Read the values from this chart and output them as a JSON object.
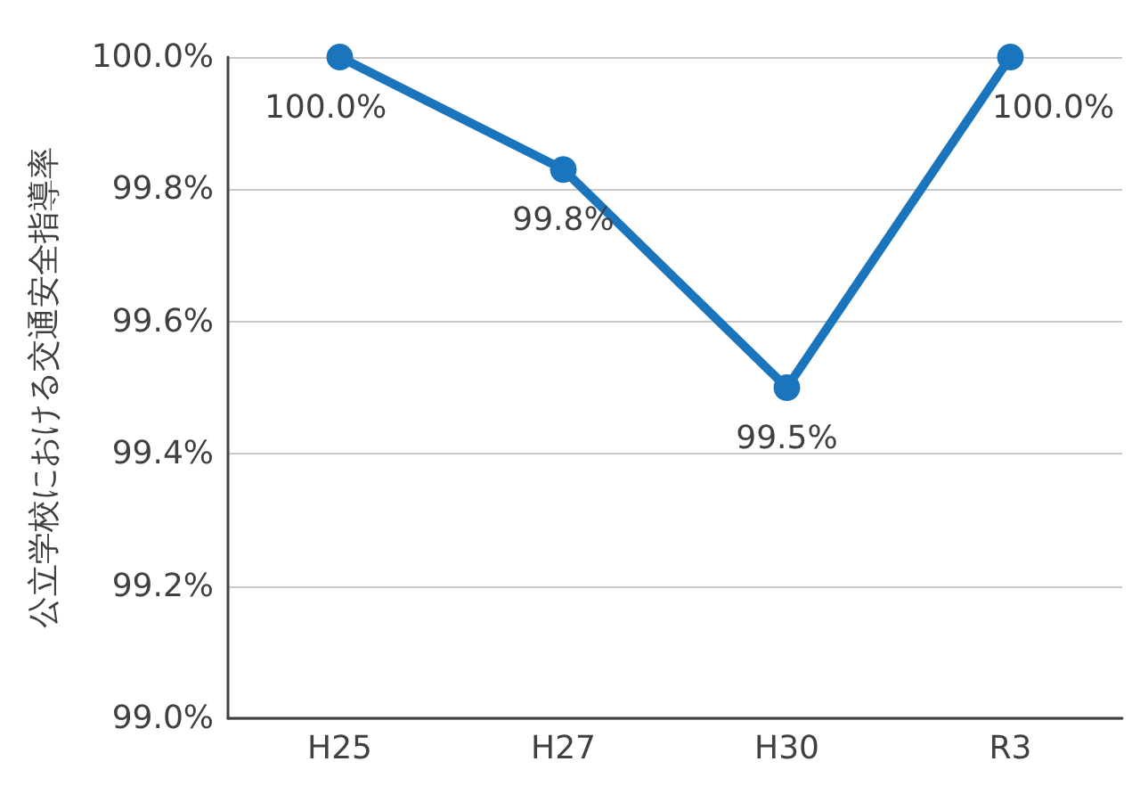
{
  "chart_data": {
    "type": "line",
    "ylabel": "公立学校における交通安全指導率",
    "categories": [
      "H25",
      "H27",
      "H30",
      "R3"
    ],
    "series": [
      {
        "color": "#1a75bc",
        "values": [
          100,
          99.83,
          99.5,
          100
        ],
        "value_labels": [
          "100.0%",
          "99.8%",
          "99.5%",
          "100.0%"
        ]
      }
    ],
    "ylim": [
      99,
      100
    ],
    "yticks": [
      {
        "value": 99,
        "label": "99.0%"
      },
      {
        "value": 99.2,
        "label": "99.2%"
      },
      {
        "value": 99.4,
        "label": "99.4%"
      },
      {
        "value": 99.6,
        "label": "99.6%"
      },
      {
        "value": 99.8,
        "label": "99.8%"
      },
      {
        "value": 100,
        "label": "100.0%"
      }
    ],
    "grid": "y",
    "marker": "circle",
    "line_style": "solid"
  }
}
